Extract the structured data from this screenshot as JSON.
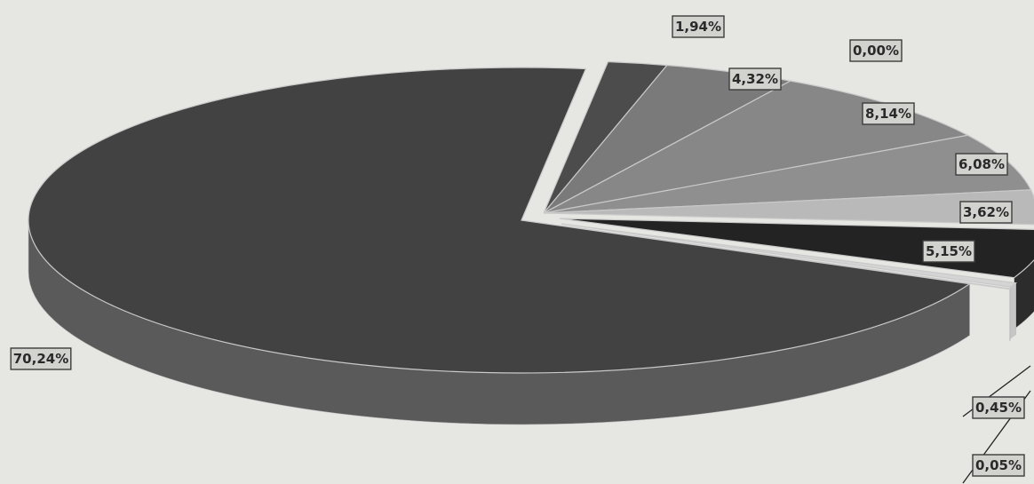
{
  "chart_data": {
    "type": "pie",
    "style": "3d-exploded",
    "slices": [
      {
        "label": "70,24%",
        "value": 70.24,
        "top_color": "#424242",
        "side_color": "#5a5a5a"
      },
      {
        "label": "1,94%",
        "value": 1.94,
        "top_color": "#4c4c4c",
        "side_color": "#5e5e5e"
      },
      {
        "label": "4,32%",
        "value": 4.32,
        "top_color": "#7a7a7a",
        "side_color": "#727272"
      },
      {
        "label": "0,00%",
        "value": 0.0,
        "top_color": "#8c8c8c",
        "side_color": "#808080"
      },
      {
        "label": "8,14%",
        "value": 8.14,
        "top_color": "#878787",
        "side_color": "#7c7c7c"
      },
      {
        "label": "6,08%",
        "value": 6.08,
        "top_color": "#8f8f8f",
        "side_color": "#848484"
      },
      {
        "label": "3,62%",
        "value": 3.62,
        "top_color": "#b9b9b9",
        "side_color": "#a8a8a8"
      },
      {
        "label": "5,15%",
        "value": 5.15,
        "top_color": "#232323",
        "side_color": "#2c2c2c"
      },
      {
        "label": "0,45%",
        "value": 0.45,
        "top_color": "#d4d4d4",
        "side_color": "#c6c6c6"
      },
      {
        "label": "0,05%",
        "value": 0.05,
        "top_color": "#dadada",
        "side_color": "#cfcfcf"
      }
    ],
    "title": "",
    "legend": "none"
  }
}
